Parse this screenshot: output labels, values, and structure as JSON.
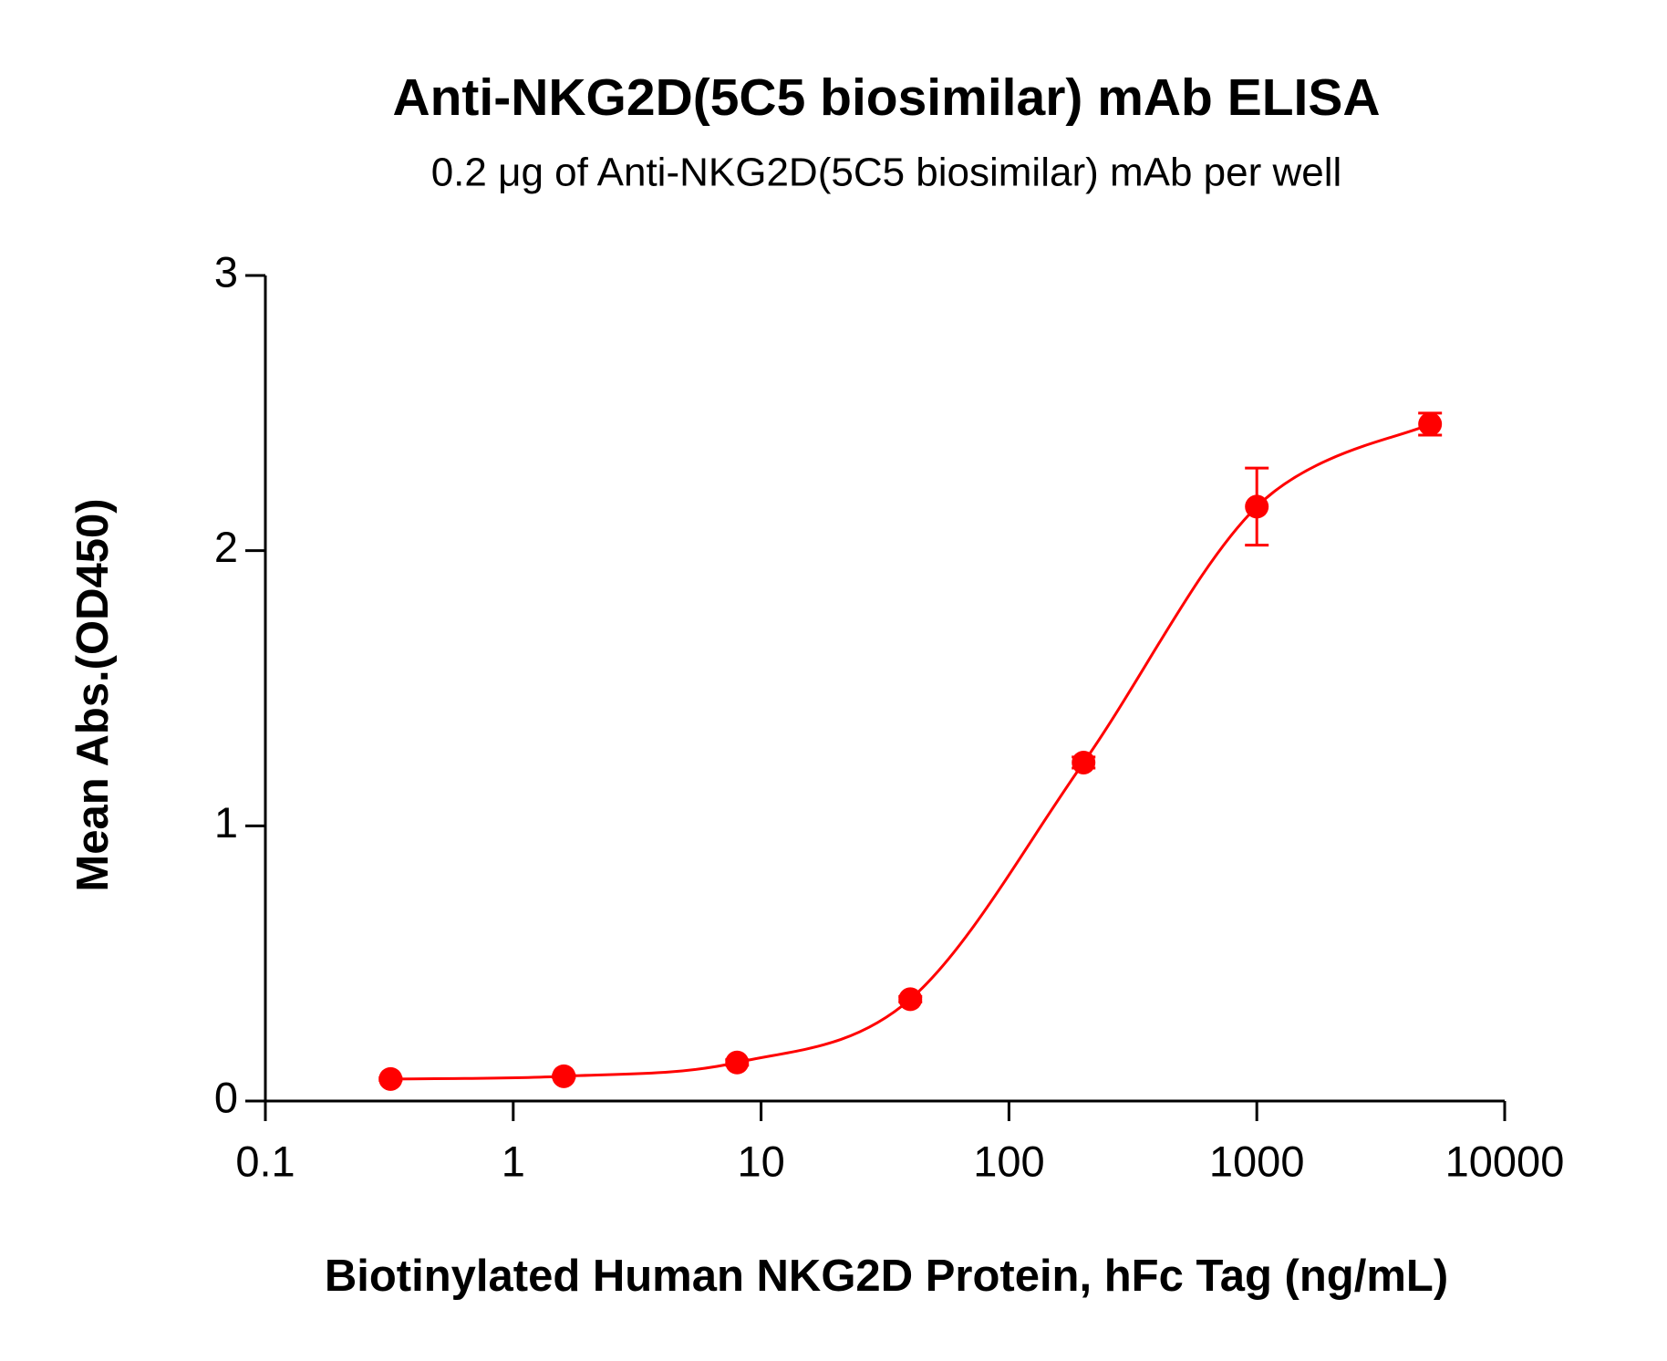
{
  "chart_data": {
    "type": "scatter",
    "title": "Anti-NKG2D(5C5 biosimilar) mAb ELISA",
    "subtitle": "0.2 μg of Anti-NKG2D(5C5 biosimilar) mAb per well",
    "x_label": "Biotinylated Human NKG2D Protein, hFc Tag (ng/mL)",
    "y_label": "Mean Abs.(OD450)",
    "x": [
      0.32,
      1.6,
      8,
      40,
      200,
      1000,
      5000
    ],
    "series": [
      {
        "color": "#ff0000",
        "values": [
          0.08,
          0.09,
          0.14,
          0.37,
          1.23,
          2.16,
          2.46
        ],
        "errors": [
          0.005,
          0.005,
          0.01,
          0.01,
          0.02,
          0.14,
          0.04
        ]
      }
    ],
    "xlim": [
      0.1,
      10000
    ],
    "xticks": [
      0.1,
      1,
      10,
      100,
      1000,
      10000
    ],
    "xscale": "log",
    "ylim": [
      0,
      3
    ],
    "yticks": [
      0,
      1,
      2,
      3
    ],
    "grid": false
  }
}
